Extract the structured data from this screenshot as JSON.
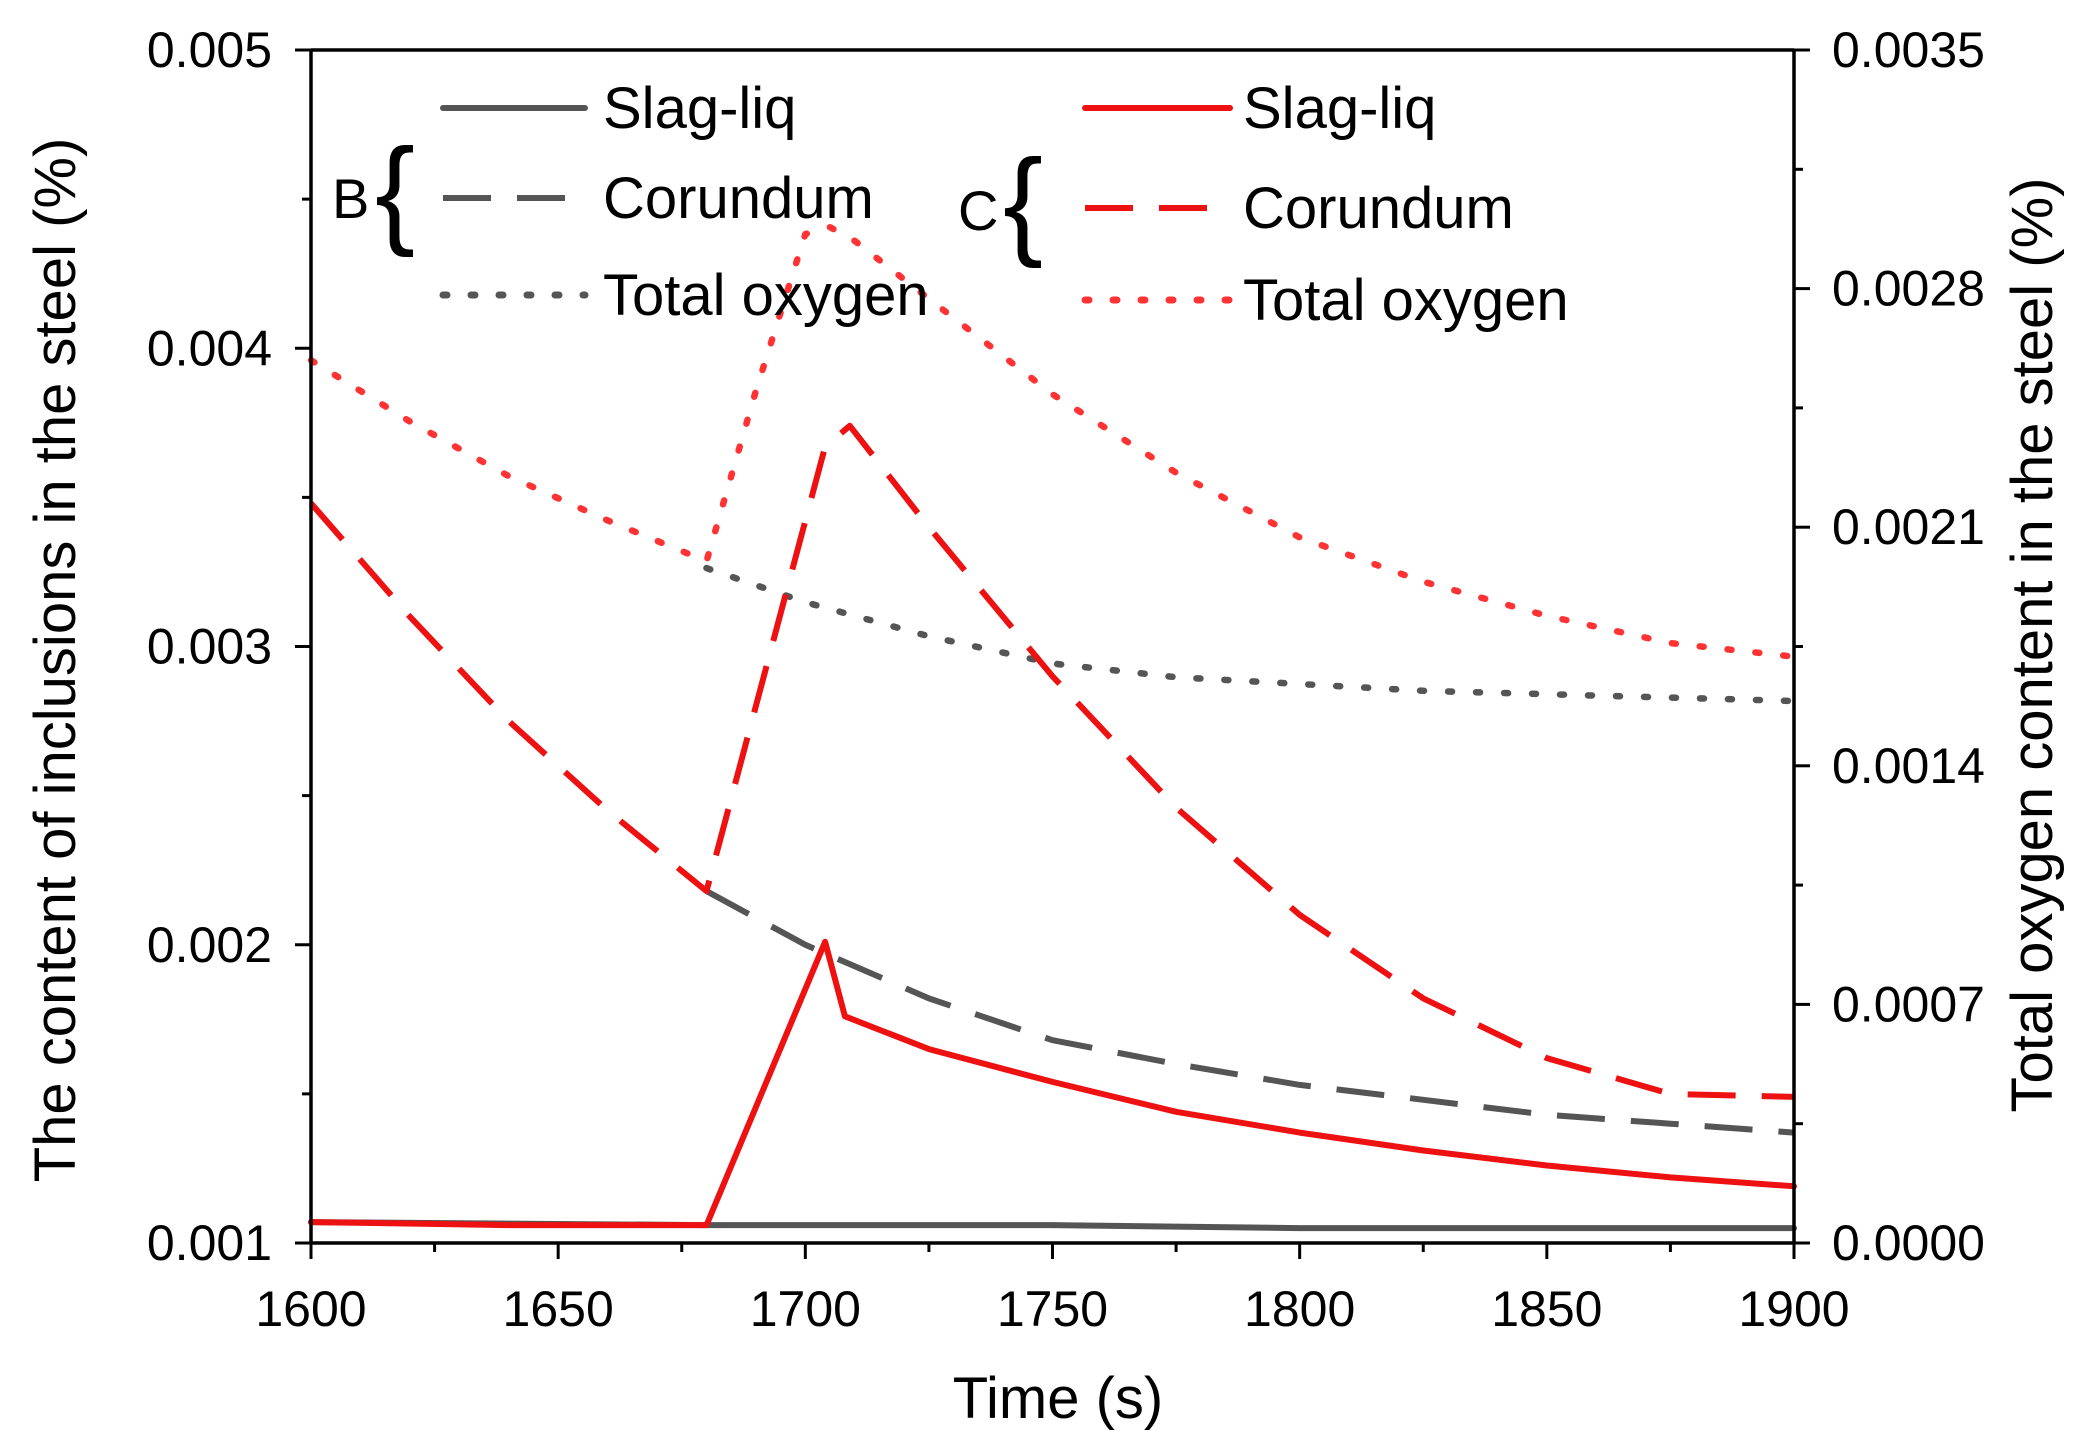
{
  "chart_data": {
    "type": "line",
    "xlabel": "Time (s)",
    "ylabel_left": "The content of inclusions in the steel (%)",
    "ylabel_right": "Total oxygen content in the steel (%)",
    "xlim": [
      1600,
      1900
    ],
    "ylim_left": [
      0.001,
      0.005
    ],
    "ylim_right": [
      0.0,
      0.0035
    ],
    "x_ticks": [
      "1600",
      "1650",
      "1700",
      "1750",
      "1800",
      "1850",
      "1900"
    ],
    "y_left_ticks": [
      "0.001",
      "0.002",
      "0.003",
      "0.004",
      "0.005"
    ],
    "y_right_ticks": [
      "0.0000",
      "0.0007",
      "0.0014",
      "0.0021",
      "0.0028",
      "0.0035"
    ],
    "grid": false,
    "legend_groups": [
      {
        "label": "B",
        "color": "#555555"
      },
      {
        "label": "C",
        "color": "#ee1111"
      }
    ],
    "series": [
      {
        "name": "Slag-liq",
        "group": "B",
        "axis": "left",
        "style": "solid",
        "color": "#555555",
        "x": [
          1600,
          1680,
          1700,
          1750,
          1800,
          1900
        ],
        "y": [
          0.00107,
          0.00106,
          0.00106,
          0.00106,
          0.00105,
          0.00105
        ]
      },
      {
        "name": "Corundum",
        "group": "B",
        "axis": "left",
        "style": "dashed",
        "color": "#555555",
        "x": [
          1680,
          1700,
          1725,
          1750,
          1775,
          1800,
          1825,
          1850,
          1875,
          1900
        ],
        "y": [
          0.00218,
          0.002,
          0.00182,
          0.00168,
          0.0016,
          0.00153,
          0.00148,
          0.00143,
          0.0014,
          0.00137
        ]
      },
      {
        "name": "Total oxygen",
        "group": "B",
        "axis": "right",
        "style": "dotted",
        "color": "#555555",
        "x": [
          1680,
          1700,
          1725,
          1750,
          1775,
          1800,
          1825,
          1850,
          1875,
          1900
        ],
        "y": [
          0.00198,
          0.00188,
          0.00178,
          0.0017,
          0.00166,
          0.00164,
          0.00162,
          0.00161,
          0.0016,
          0.00159
        ]
      },
      {
        "name": "Slag-liq",
        "group": "C",
        "axis": "left",
        "style": "solid",
        "color": "#ee1111",
        "x": [
          1600,
          1640,
          1680,
          1704,
          1708,
          1725,
          1750,
          1775,
          1800,
          1825,
          1850,
          1875,
          1900
        ],
        "y": [
          0.00107,
          0.00106,
          0.00106,
          0.00201,
          0.00176,
          0.00165,
          0.00154,
          0.00144,
          0.00137,
          0.00131,
          0.00126,
          0.00122,
          0.00119
        ]
      },
      {
        "name": "Corundum",
        "group": "C",
        "axis": "left",
        "style": "dashed",
        "color": "#ee1111",
        "x": [
          1600,
          1620,
          1640,
          1660,
          1680,
          1704,
          1709,
          1725,
          1750,
          1775,
          1800,
          1825,
          1850,
          1875,
          1900
        ],
        "y": [
          0.00348,
          0.0031,
          0.00275,
          0.00245,
          0.00218,
          0.00367,
          0.00374,
          0.0034,
          0.0029,
          0.00246,
          0.0021,
          0.00182,
          0.00162,
          0.0015,
          0.00149
        ]
      },
      {
        "name": "Total oxygen",
        "group": "C",
        "axis": "right",
        "style": "dotted",
        "color": "#ff3333",
        "x": [
          1600,
          1620,
          1640,
          1660,
          1680,
          1690,
          1700,
          1705,
          1710,
          1725,
          1750,
          1775,
          1800,
          1825,
          1850,
          1875,
          1900
        ],
        "y": [
          0.00259,
          0.00241,
          0.00225,
          0.00212,
          0.002,
          0.0025,
          0.00296,
          0.00298,
          0.00294,
          0.00277,
          0.00249,
          0.00226,
          0.00207,
          0.00194,
          0.00184,
          0.00176,
          0.00172
        ]
      }
    ]
  }
}
